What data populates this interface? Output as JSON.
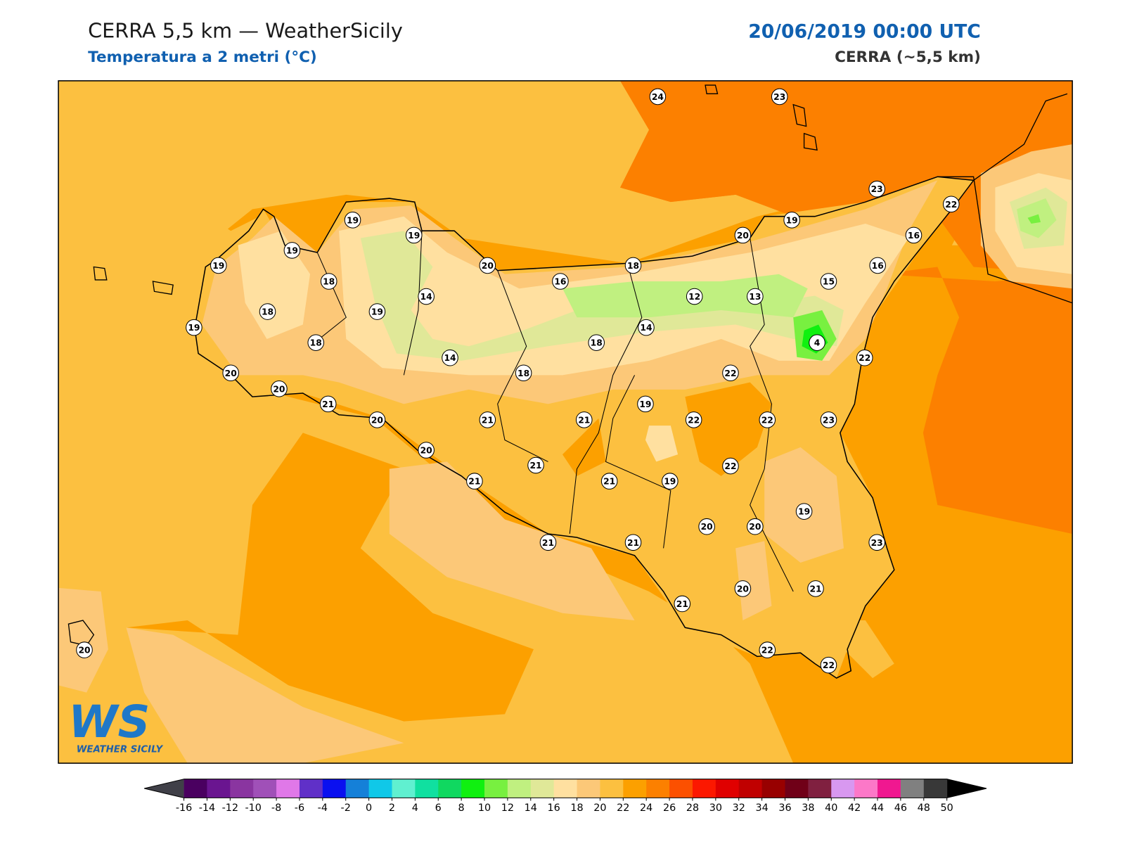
{
  "header": {
    "title": "CERRA 5,5 km — WeatherSicily",
    "subtitle": "Temperatura a 2 metri (°C)",
    "datetime": "20/06/2019 00:00 UTC",
    "source": "CERRA (~5,5 km)"
  },
  "stations": [
    24,
    23,
    23,
    22,
    19,
    19,
    19,
    20,
    16,
    19,
    19,
    18,
    20,
    18,
    16,
    16,
    15,
    14,
    12,
    13,
    18,
    19,
    19,
    14,
    18,
    18,
    4,
    14,
    22,
    20,
    18,
    22,
    20,
    21,
    20,
    21,
    21,
    19,
    22,
    22,
    23,
    20,
    21,
    22,
    21,
    21,
    19,
    19,
    20,
    20,
    21,
    21,
    23,
    20,
    21,
    21,
    20,
    22,
    22
  ],
  "colorbar": {
    "ticks": [
      -16,
      -14,
      -12,
      -10,
      -8,
      -6,
      -4,
      -2,
      0,
      2,
      4,
      6,
      8,
      10,
      12,
      14,
      16,
      18,
      20,
      22,
      24,
      26,
      28,
      30,
      32,
      34,
      36,
      38,
      40,
      42,
      44,
      46,
      48,
      50
    ],
    "colors": [
      "#4a0060",
      "#6a1590",
      "#8a35a0",
      "#a050b8",
      "#e078e8",
      "#6030c8",
      "#0a10f0",
      "#1580d8",
      "#10c8e8",
      "#60f0d0",
      "#10e0a0",
      "#10d860",
      "#10f010",
      "#78f040",
      "#c0f080",
      "#e0e898",
      "#ffe0a0",
      "#fcc878",
      "#fcc040",
      "#fca000",
      "#fc8000",
      "#fc5000",
      "#fc1800",
      "#e00000",
      "#c00000",
      "#980000",
      "#700018",
      "#802040",
      "#d898f0",
      "#fc78c8",
      "#f01890",
      "#808080",
      "#383838"
    ],
    "under_color": "#404048",
    "over_color": "#000000"
  },
  "logo": {
    "mark": "WS",
    "text": "WEATHER SICILY"
  }
}
